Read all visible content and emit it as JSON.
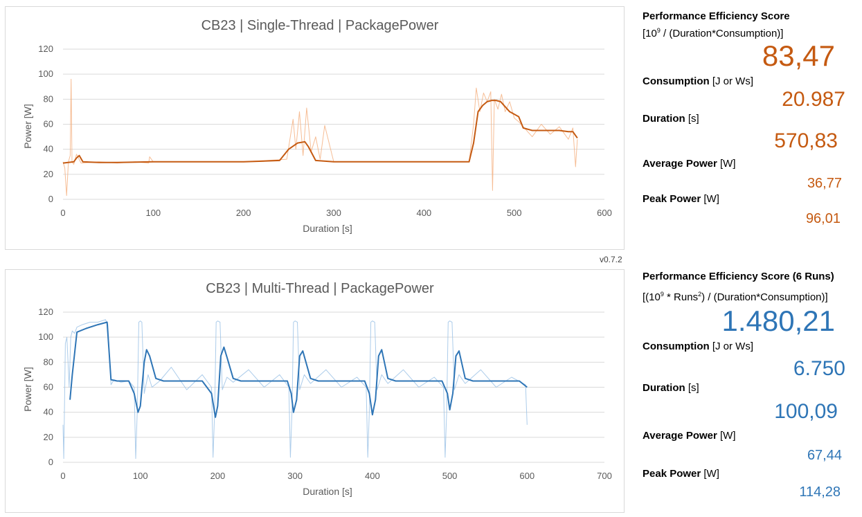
{
  "version": "v0.7.2",
  "colors": {
    "orange": "#c55a11",
    "orange_light": "#f4b183",
    "blue": "#2e75b6",
    "blue_light": "#9dc3e6",
    "grid": "#d9d9d9"
  },
  "chart_data": [
    {
      "type": "line",
      "title": "CB23 | Single-Thread | PackagePower",
      "xlabel": "Duration [s]",
      "ylabel": "Power [W]",
      "xlim": [
        0,
        600
      ],
      "ylim": [
        0,
        120
      ],
      "x_ticks": [
        "0",
        "100",
        "200",
        "300",
        "400",
        "500",
        "600"
      ],
      "y_ticks": [
        "0",
        "20",
        "40",
        "60",
        "80",
        "100",
        "120"
      ],
      "grid": true,
      "series": [
        {
          "role": "raw",
          "x": [
            0,
            2,
            4,
            6,
            8,
            9,
            10,
            12,
            15,
            20,
            40,
            60,
            80,
            95,
            96,
            100,
            150,
            200,
            248,
            255,
            258,
            262,
            266,
            270,
            275,
            280,
            285,
            290,
            300,
            350,
            400,
            450,
            455,
            458,
            462,
            466,
            470,
            474,
            476,
            478,
            482,
            486,
            490,
            495,
            500,
            505,
            510,
            520,
            530,
            540,
            550,
            560,
            565,
            568,
            570
          ],
          "y": [
            30,
            25,
            3,
            30,
            35,
            96,
            30,
            28,
            36,
            29,
            30,
            29,
            30,
            29,
            34,
            30,
            30,
            30,
            32,
            64,
            40,
            70,
            35,
            73,
            38,
            50,
            32,
            59,
            30,
            30,
            30,
            30,
            60,
            89,
            70,
            85,
            78,
            86,
            7,
            80,
            72,
            84,
            70,
            78,
            65,
            62,
            58,
            50,
            60,
            52,
            58,
            48,
            57,
            26,
            48
          ]
        },
        {
          "role": "smoothed",
          "x": [
            0,
            12,
            15,
            18,
            22,
            40,
            60,
            100,
            150,
            200,
            240,
            250,
            260,
            268,
            272,
            280,
            300,
            350,
            400,
            450,
            455,
            460,
            465,
            470,
            475,
            480,
            485,
            490,
            495,
            500,
            505,
            510,
            520,
            530,
            540,
            550,
            560,
            565,
            570
          ],
          "y": [
            29,
            30,
            33,
            35,
            30,
            29.5,
            29.5,
            30,
            30,
            30,
            31,
            40,
            45,
            46,
            42,
            31,
            30,
            30,
            30,
            30,
            45,
            70,
            75,
            78,
            79,
            79,
            78,
            74,
            70,
            68,
            66,
            57,
            55,
            55,
            55,
            55,
            54,
            54,
            49
          ]
        }
      ]
    },
    {
      "type": "line",
      "title": "CB23 | Multi-Thread | PackagePower",
      "xlabel": "Duration [s]",
      "ylabel": "Power [W]",
      "xlim": [
        0,
        700
      ],
      "ylim": [
        0,
        120
      ],
      "x_ticks": [
        "0",
        "100",
        "200",
        "300",
        "400",
        "500",
        "600",
        "700"
      ],
      "y_ticks": [
        "0",
        "20",
        "40",
        "60",
        "80",
        "100",
        "120"
      ],
      "grid": true,
      "series": [
        {
          "role": "raw",
          "x": [
            0,
            1,
            3,
            5,
            8,
            10,
            12,
            15,
            18,
            25,
            35,
            45,
            55,
            58,
            62,
            66,
            75,
            85,
            92,
            94,
            96,
            98,
            100,
            102,
            105,
            110,
            115,
            125,
            140,
            160,
            180,
            192,
            194,
            196,
            198,
            200,
            203,
            206,
            212,
            220,
            240,
            260,
            280,
            292,
            294,
            296,
            298,
            300,
            303,
            306,
            312,
            320,
            340,
            360,
            380,
            392,
            394,
            396,
            398,
            400,
            403,
            406,
            412,
            420,
            440,
            460,
            480,
            492,
            494,
            496,
            498,
            500,
            503,
            506,
            512,
            520,
            540,
            560,
            580,
            598,
            600
          ],
          "y": [
            30,
            3,
            95,
            100,
            60,
            100,
            105,
            103,
            108,
            110,
            112,
            112,
            114,
            110,
            62,
            66,
            64,
            65,
            60,
            3,
            40,
            112,
            113,
            112,
            55,
            70,
            60,
            65,
            76,
            58,
            70,
            60,
            4,
            40,
            112,
            113,
            112,
            58,
            68,
            64,
            74,
            60,
            70,
            60,
            4,
            40,
            112,
            113,
            112,
            58,
            70,
            63,
            74,
            60,
            68,
            60,
            4,
            40,
            112,
            113,
            112,
            58,
            70,
            63,
            74,
            60,
            68,
            60,
            4,
            40,
            112,
            113,
            112,
            58,
            70,
            63,
            74,
            60,
            68,
            62,
            30
          ]
        },
        {
          "role": "smoothed",
          "x": [
            9,
            12,
            18,
            30,
            45,
            57,
            62,
            70,
            85,
            92,
            97,
            100,
            105,
            108,
            112,
            120,
            130,
            150,
            180,
            192,
            197,
            200,
            204,
            208,
            212,
            220,
            230,
            260,
            290,
            295,
            298,
            302,
            306,
            310,
            320,
            330,
            360,
            390,
            396,
            400,
            404,
            408,
            412,
            420,
            430,
            460,
            490,
            497,
            500,
            504,
            508,
            512,
            520,
            530,
            560,
            590,
            600
          ],
          "y": [
            50,
            70,
            104,
            107,
            110,
            112,
            66,
            65,
            65,
            55,
            40,
            45,
            80,
            90,
            85,
            67,
            65,
            65,
            65,
            55,
            36,
            45,
            85,
            92,
            84,
            67,
            65,
            65,
            65,
            55,
            40,
            50,
            85,
            89,
            67,
            65,
            65,
            65,
            55,
            38,
            50,
            85,
            90,
            67,
            65,
            65,
            65,
            55,
            42,
            55,
            85,
            89,
            67,
            65,
            65,
            65,
            60
          ]
        }
      ]
    }
  ],
  "single_thread_stats": {
    "score_label": "Performance Efficiency Score",
    "score_formula_pre": "[10",
    "score_formula_sup": "9",
    "score_formula_post": " / (Duration*Consumption)]",
    "score_value": "83,47",
    "consumption_label": "Consumption",
    "consumption_unit": " [J or Ws]",
    "consumption_value": "20.987",
    "duration_label": "Duration",
    "duration_unit": " [s]",
    "duration_value": "570,83",
    "avg_power_label": "Average Power",
    "avg_power_unit": " [W]",
    "avg_power_value": "36,77",
    "peak_power_label": "Peak Power",
    "peak_power_unit": " [W]",
    "peak_power_value": "96,01"
  },
  "multi_thread_stats": {
    "score_label": "Performance Efficiency Score (6 Runs)",
    "score_formula_pre": "[(10",
    "score_formula_sup": "9",
    "score_formula_mid": " * Runs",
    "score_formula_sup2": "2",
    "score_formula_post": ") / (Duration*Consumption)]",
    "score_value": "1.480,21",
    "consumption_label": "Consumption",
    "consumption_unit": " [J or Ws]",
    "consumption_value": "6.750",
    "duration_label": "Duration",
    "duration_unit": " [s]",
    "duration_value": "100,09",
    "avg_power_label": "Average Power",
    "avg_power_unit": " [W]",
    "avg_power_value": "67,44",
    "peak_power_label": "Peak Power",
    "peak_power_unit": " [W]",
    "peak_power_value": "114,28"
  }
}
